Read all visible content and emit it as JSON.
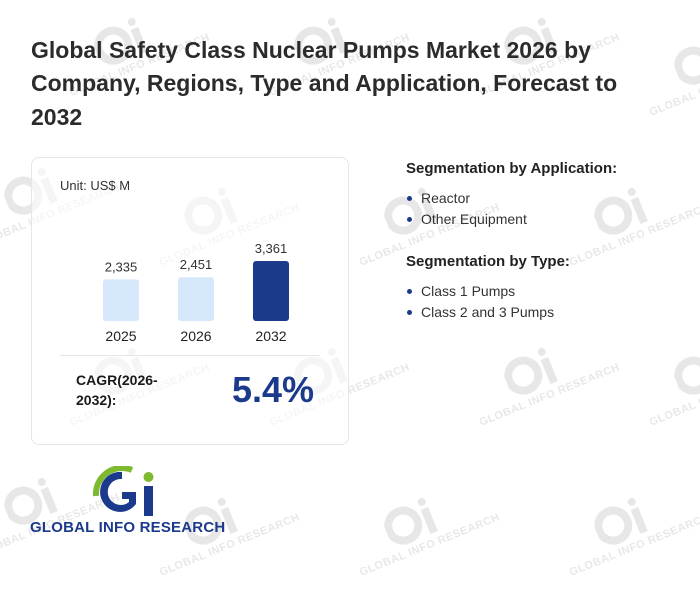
{
  "title": "Global Safety Class Nuclear Pumps Market 2026 by Company, Regions, Type and Application, Forecast to 2032",
  "chart_data": {
    "type": "bar",
    "unit_label": "Unit: US$ M",
    "categories": [
      "2025",
      "2026",
      "2032"
    ],
    "values": [
      2335,
      2451,
      3361
    ],
    "value_labels": [
      "2,335",
      "2,451",
      "3,361"
    ],
    "bar_colors": [
      "#d6e8fb",
      "#d6e8fb",
      "#1b3a8c"
    ],
    "title": "",
    "xlabel": "",
    "ylabel": "",
    "grid": false
  },
  "cagr": {
    "label": "CAGR(2026-2032):",
    "value": "5.4%"
  },
  "segments": {
    "application": {
      "heading": "Segmentation by Application:",
      "items": [
        "Reactor",
        "Other Equipment"
      ]
    },
    "type": {
      "heading": "Segmentation by Type:",
      "items": [
        "Class 1 Pumps",
        "Class 2 and 3 Pumps"
      ]
    }
  },
  "logo": {
    "text": "GLOBAL INFO RESEARCH",
    "colors": {
      "blue": "#1b3a8c",
      "green": "#7dba2f"
    }
  },
  "watermark": {
    "text": "GLOBAL INFO RESEARCH"
  }
}
